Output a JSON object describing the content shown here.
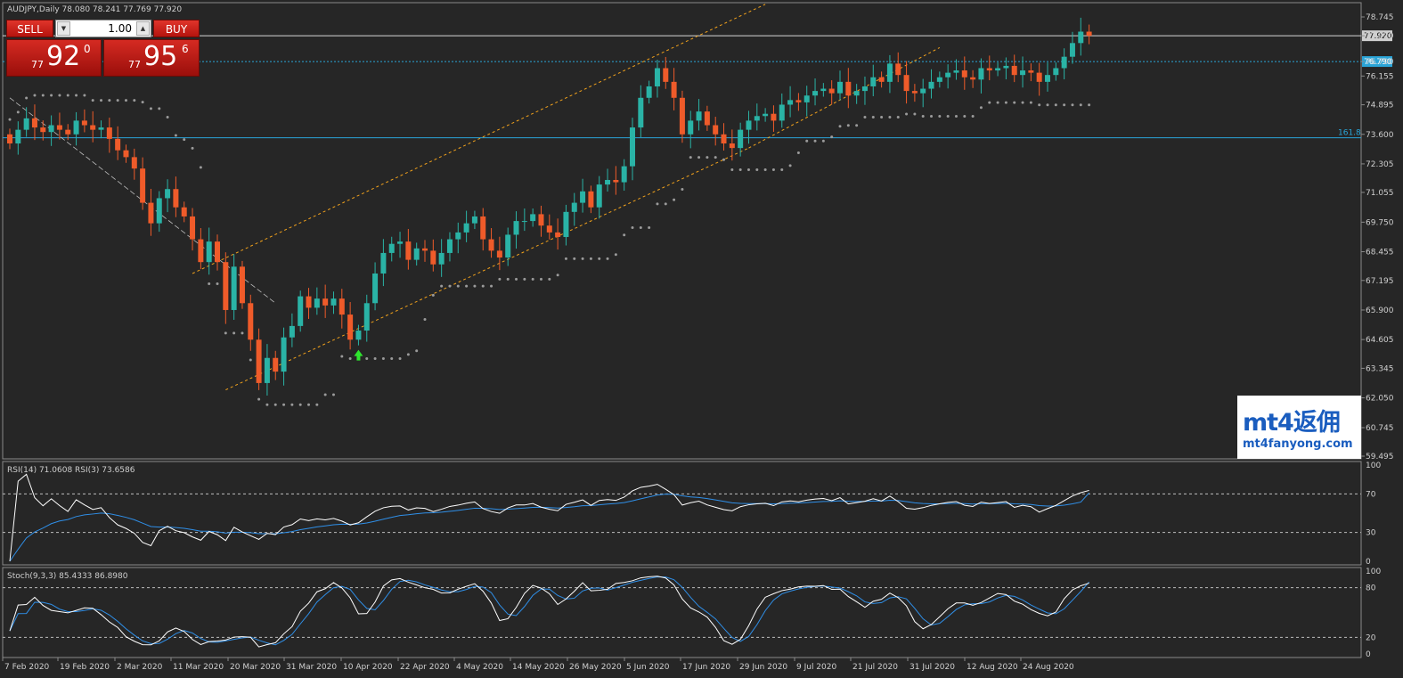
{
  "header": {
    "symbol_info": "AUDJPY,Daily  78.080 78.241 77.769 77.920"
  },
  "trade_panel": {
    "sell_label": "SELL",
    "buy_label": "BUY",
    "lot_value": "1.00",
    "sell_prefix": "77",
    "sell_big": "92",
    "sell_sup": "0",
    "buy_prefix": "77",
    "buy_big": "95",
    "buy_sup": "6",
    "spin_down_icon": "triangle-down-icon",
    "spin_up_icon": "triangle-up-icon"
  },
  "watermark": {
    "line1": "mt4返佣",
    "line2": "mt4fanyong.com"
  },
  "colors": {
    "background": "#262626",
    "bull": "#2ab3a6",
    "bear": "#ef5b2a",
    "sar": "#9a9a9a",
    "channel": "#f2a21c",
    "level_line": "#2aa5d8",
    "rsi14": "#ffffff",
    "rsi3": "#2f8fe8",
    "stoch_main": "#ffffff",
    "stoch_signal": "#2f8fe8"
  },
  "chart_data": [
    {
      "type": "candlestick",
      "symbol": "AUDJPY",
      "timeframe": "Daily",
      "ohlc_last": {
        "open": 78.08,
        "high": 78.241,
        "low": 77.769,
        "close": 77.92
      },
      "ylim": [
        59.0,
        79.2
      ],
      "y_ticks": [
        "78.745",
        "77.920",
        "76.790",
        "76.155",
        "74.895",
        "73.600",
        "72.305",
        "71.055",
        "69.750",
        "68.455",
        "67.195",
        "65.900",
        "64.605",
        "63.345",
        "62.050",
        "60.745",
        "59.495"
      ],
      "x_ticks": [
        "7 Feb 2020",
        "19 Feb 2020",
        "2 Mar 2020",
        "11 Mar 2020",
        "20 Mar 2020",
        "31 Mar 2020",
        "10 Apr 2020",
        "22 Apr 2020",
        "4 May 2020",
        "14 May 2020",
        "26 May 2020",
        "5 Jun 2020",
        "17 Jun 2020",
        "29 Jun 2020",
        "9 Jul 2020",
        "21 Jul 2020",
        "31 Jul 2020",
        "12 Aug 2020",
        "24 Aug 2020"
      ],
      "current_price_label": "77.920",
      "horizontal_levels": [
        {
          "label": "76.790",
          "price": 76.79
        },
        {
          "label": "161.8",
          "price": 73.45
        }
      ],
      "closes": [
        73.2,
        73.8,
        74.3,
        73.9,
        73.7,
        74.0,
        73.8,
        73.6,
        74.2,
        74.0,
        73.8,
        73.9,
        73.4,
        72.9,
        72.6,
        72.1,
        70.6,
        69.7,
        70.8,
        71.2,
        70.4,
        70.0,
        69.0,
        68.0,
        68.9,
        68.0,
        65.9,
        67.8,
        66.2,
        64.6,
        62.7,
        63.8,
        63.2,
        64.7,
        65.2,
        66.5,
        66.0,
        66.4,
        66.1,
        66.4,
        65.7,
        64.6,
        65.0,
        66.2,
        67.5,
        68.4,
        68.8,
        68.9,
        68.1,
        68.6,
        68.5,
        67.9,
        68.4,
        69.0,
        69.3,
        69.7,
        70.0,
        69.0,
        68.5,
        68.2,
        69.2,
        69.8,
        69.8,
        70.1,
        69.6,
        69.3,
        69.1,
        70.2,
        70.6,
        71.1,
        70.4,
        71.4,
        71.6,
        71.5,
        72.2,
        73.9,
        75.2,
        75.7,
        76.5,
        75.9,
        75.2,
        73.6,
        74.2,
        74.6,
        74.0,
        73.6,
        73.2,
        73.0,
        73.8,
        74.2,
        74.4,
        74.5,
        74.2,
        74.9,
        75.1,
        75.0,
        75.3,
        75.5,
        75.6,
        75.4,
        75.9,
        75.3,
        75.5,
        75.7,
        76.1,
        75.9,
        76.7,
        76.2,
        75.5,
        75.4,
        75.6,
        75.9,
        76.1,
        76.3,
        76.4,
        76.1,
        76.0,
        76.5,
        76.4,
        76.5,
        76.6,
        76.2,
        76.4,
        76.3,
        75.9,
        76.2,
        76.5,
        77.0,
        77.6,
        78.1,
        77.92
      ],
      "parabolic_sar_visible": true,
      "channel_lines": 2,
      "buy_arrow": {
        "date_index": 42,
        "color": "#2ee62e"
      }
    },
    {
      "type": "line",
      "title": "RSI(14) 71.0608  RSI(3) 73.6586",
      "ylim": [
        0,
        100
      ],
      "y_ticks": [
        "100",
        "70",
        "30",
        "0"
      ],
      "levels": [
        70,
        30
      ],
      "series": [
        {
          "name": "RSI(14)",
          "last": 71.0608
        },
        {
          "name": "RSI(3)",
          "last": 73.6586
        }
      ]
    },
    {
      "type": "line",
      "title": "Stoch(9,3,3) 85.4333 86.8980",
      "ylim": [
        0,
        100
      ],
      "y_ticks": [
        "100",
        "80",
        "20",
        "0"
      ],
      "levels": [
        80,
        20
      ],
      "series": [
        {
          "name": "Stoch main",
          "last": 85.4333
        },
        {
          "name": "Stoch signal",
          "last": 86.898
        }
      ]
    }
  ]
}
